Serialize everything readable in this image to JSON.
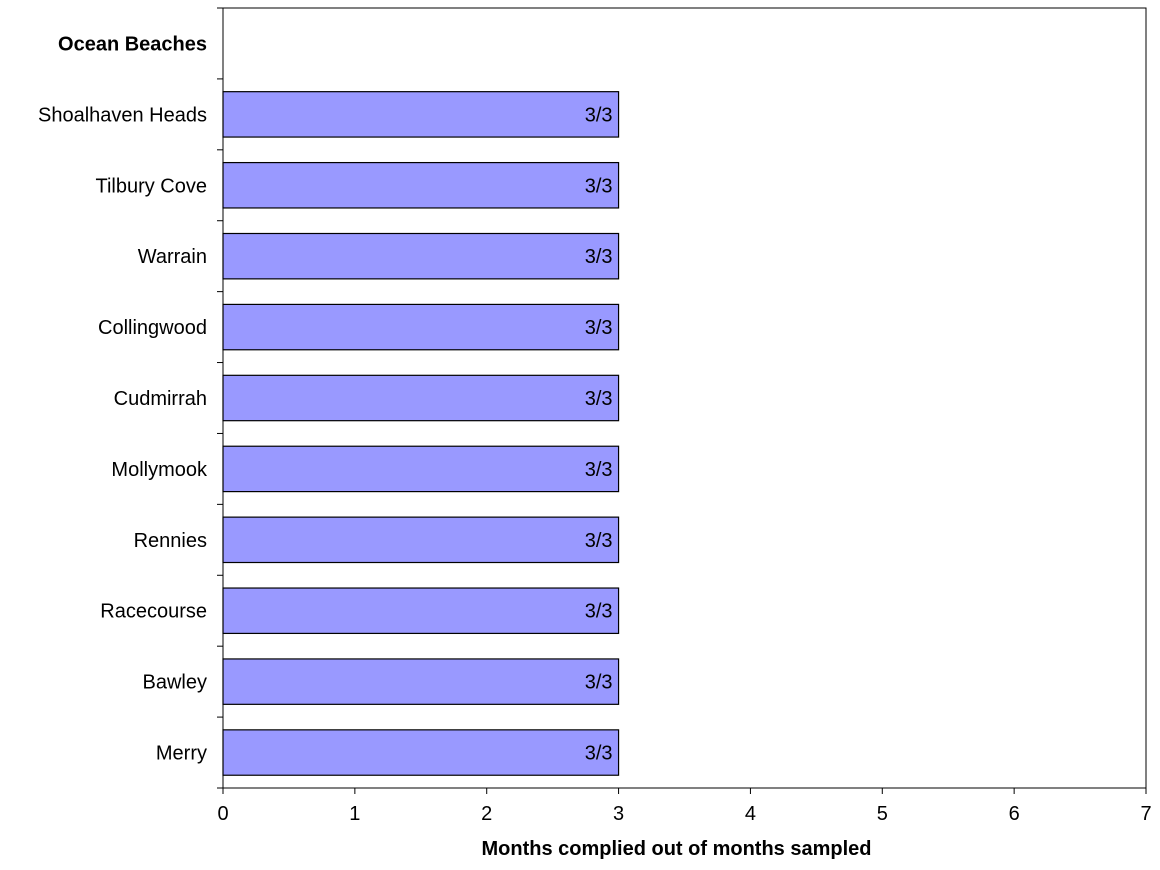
{
  "chart_data": {
    "type": "bar",
    "orientation": "horizontal",
    "categories": [
      "Ocean Beaches",
      "Shoalhaven Heads",
      "Tilbury Cove",
      "Warrain",
      "Collingwood",
      "Cudmirrah",
      "Mollymook",
      "Rennies",
      "Racecourse",
      "Bawley",
      "Merry"
    ],
    "bold_categories": [
      "Ocean Beaches"
    ],
    "values": [
      null,
      3,
      3,
      3,
      3,
      3,
      3,
      3,
      3,
      3,
      3
    ],
    "data_labels": [
      "",
      "3/3",
      "3/3",
      "3/3",
      "3/3",
      "3/3",
      "3/3",
      "3/3",
      "3/3",
      "3/3",
      "3/3"
    ],
    "xlabel": "Months complied out of months sampled",
    "ylabel": "",
    "title": "",
    "xlim": [
      0,
      7
    ],
    "xticks": [
      0,
      1,
      2,
      3,
      4,
      5,
      6,
      7
    ],
    "grid": false,
    "legend": "none",
    "bar_color": "#9999ff",
    "bar_edge_color": "#000000"
  }
}
